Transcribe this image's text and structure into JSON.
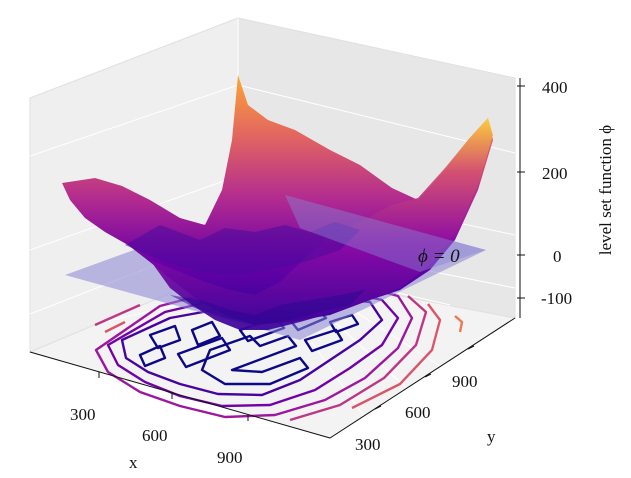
{
  "chart_data": {
    "type": "surface3d",
    "title": "",
    "xlabel": "x",
    "ylabel": "y",
    "zlabel": "level set function ϕ",
    "x_ticks": [
      300,
      600,
      900
    ],
    "y_ticks": [
      300,
      600,
      900
    ],
    "z_ticks": [
      -100,
      0,
      200,
      400
    ],
    "xlim": [
      0,
      1100
    ],
    "ylim": [
      0,
      1100
    ],
    "zlim": [
      -150,
      420
    ],
    "zero_plane": {
      "z": 0,
      "label": "ϕ = 0",
      "color": "#8a84d4"
    },
    "colormap": "plasma",
    "surface_extremes": {
      "min": -120,
      "max": 400
    },
    "grid": true,
    "contour_levels": [
      -60,
      -30,
      0,
      30,
      60,
      90,
      120
    ],
    "contour_colors": [
      "#0d0887",
      "#46039f",
      "#7201a8",
      "#9c179e",
      "#bd3786",
      "#d8576b",
      "#ed7953"
    ]
  }
}
